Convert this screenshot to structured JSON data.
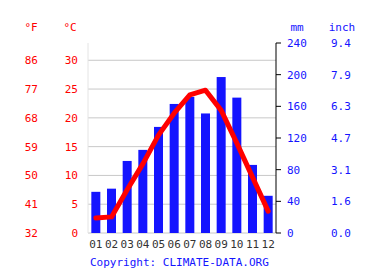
{
  "chart_data": {
    "type": "combo",
    "categories": [
      "01",
      "02",
      "03",
      "04",
      "05",
      "06",
      "07",
      "08",
      "09",
      "10",
      "11",
      "12"
    ],
    "series": [
      {
        "type": "bar",
        "axis": "y2",
        "color": "#1414ff",
        "values": [
          52,
          56,
          91,
          105,
          134,
          163,
          172,
          151,
          197,
          171,
          86,
          47
        ]
      },
      {
        "type": "line",
        "color": "#ff0000",
        "values": [
          2.6,
          2.8,
          7.5,
          12,
          17,
          20.8,
          24,
          24.8,
          21.3,
          15.6,
          9.7,
          3.8
        ]
      }
    ],
    "y_label": "°C",
    "ylim": [
      0,
      33
    ],
    "yticks": [
      0,
      5,
      10,
      15,
      20,
      25,
      30
    ],
    "y_alt_label": "°F",
    "y_alt_ticks": [
      {
        "value": 0,
        "label": "32"
      },
      {
        "value": 5,
        "label": "41"
      },
      {
        "value": 10,
        "label": "50"
      },
      {
        "value": 15,
        "label": "59"
      },
      {
        "value": 20,
        "label": "68"
      },
      {
        "value": 25,
        "label": "77"
      },
      {
        "value": 30,
        "label": "86"
      }
    ],
    "y2_label": "mm",
    "y2lim": [
      0,
      240
    ],
    "y2ticks": [
      0,
      40,
      80,
      120,
      160,
      200,
      240
    ],
    "y2_alt_label": "inch",
    "y2_alt_ticks": [
      {
        "value": 0,
        "label": "0.0"
      },
      {
        "value": 40,
        "label": "1.6"
      },
      {
        "value": 80,
        "label": "3.1"
      },
      {
        "value": 120,
        "label": "4.7"
      },
      {
        "value": 160,
        "label": "6.3"
      },
      {
        "value": 200,
        "label": "7.9"
      },
      {
        "value": 240,
        "label": "9.4"
      }
    ],
    "grid": true,
    "annotation": "Copyright: CLIMATE-DATA.ORG"
  }
}
